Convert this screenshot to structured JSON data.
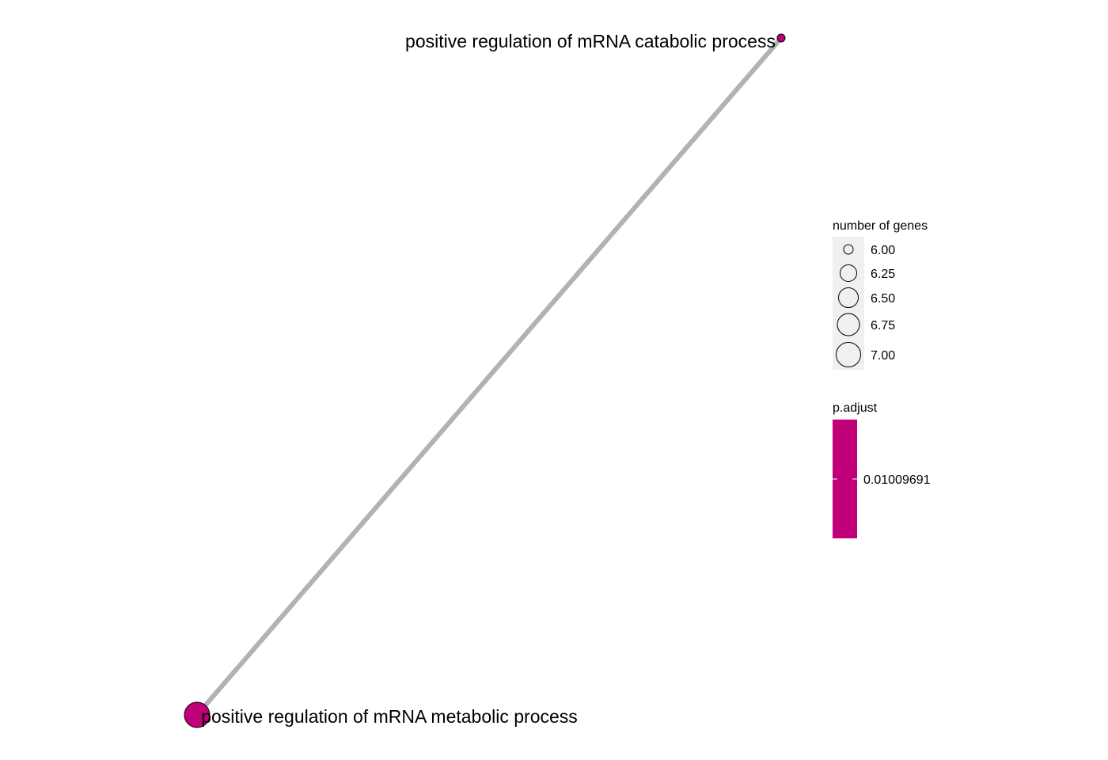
{
  "chart_data": {
    "type": "network",
    "title": "",
    "grid": false,
    "nodes": [
      {
        "id": "catabolic",
        "label": "positive regulation of mRNA catabolic process",
        "number_of_genes": 6,
        "p_adjust": 0.01009691
      },
      {
        "id": "metabolic",
        "label": "positive regulation of mRNA metabolic process",
        "number_of_genes": 7,
        "p_adjust": 0.01009691
      }
    ],
    "edges": [
      {
        "source": "metabolic",
        "target": "catabolic"
      }
    ],
    "edge_color": "#b2b2b2",
    "node_color": "#bf0078",
    "legend": {
      "placement": "right",
      "size_title": "number of genes",
      "size_breaks": [
        "6.00",
        "6.25",
        "6.50",
        "6.75",
        "7.00"
      ],
      "size_key_background": "#f0f0f0",
      "color_title": "p.adjust",
      "color_breaks": [
        "0.01009691"
      ],
      "color_low": "#bf0078",
      "color_high": "#bf0078"
    }
  }
}
